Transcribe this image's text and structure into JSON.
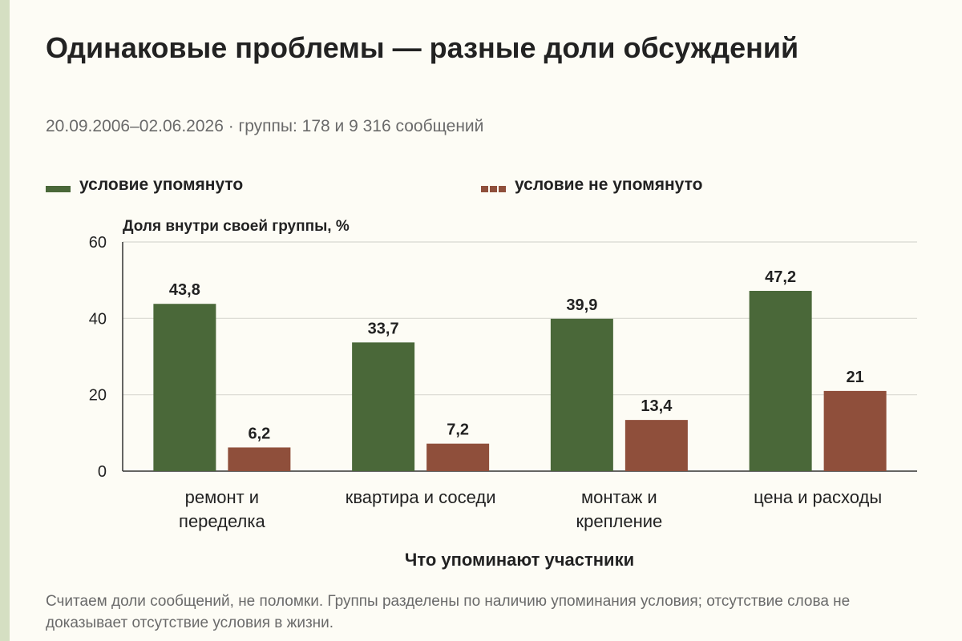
{
  "title": "Одинаковые проблемы — разные доли обсуждений",
  "subtitle": "20.09.2006–02.06.2026 · группы: 178 и 9 316 сообщений",
  "footnote": "Считаем доли сообщений, не поломки. Группы разделены по наличию упоминания условия; отсутствие слова не доказывает отсутствие условия в жизни.",
  "colors": {
    "mentioned": "#4a6839",
    "not_mentioned": "#8f4f3b",
    "grid": "#d9d9d2"
  },
  "chart_data": {
    "type": "bar",
    "categories": [
      [
        "ремонт и",
        "переделка"
      ],
      [
        "квартира и соседи"
      ],
      [
        "монтаж и",
        "крепление"
      ],
      [
        "цена и расходы"
      ]
    ],
    "series": [
      {
        "name": "условие упомянуто",
        "values": [
          43.8,
          33.7,
          39.9,
          47.2
        ],
        "labels": [
          "43,8",
          "33,7",
          "39,9",
          "47,2"
        ]
      },
      {
        "name": "условие не упомянуто",
        "values": [
          6.2,
          7.2,
          13.4,
          21
        ],
        "labels": [
          "6,2",
          "7,2",
          "13,4",
          "21"
        ]
      }
    ],
    "ylabel": "Доля внутри своей группы, %",
    "xlabel": "Что упоминают участники",
    "ylim": [
      0,
      60
    ],
    "yticks": [
      0,
      20,
      40,
      60
    ],
    "grid": true,
    "legend_position": "top"
  }
}
